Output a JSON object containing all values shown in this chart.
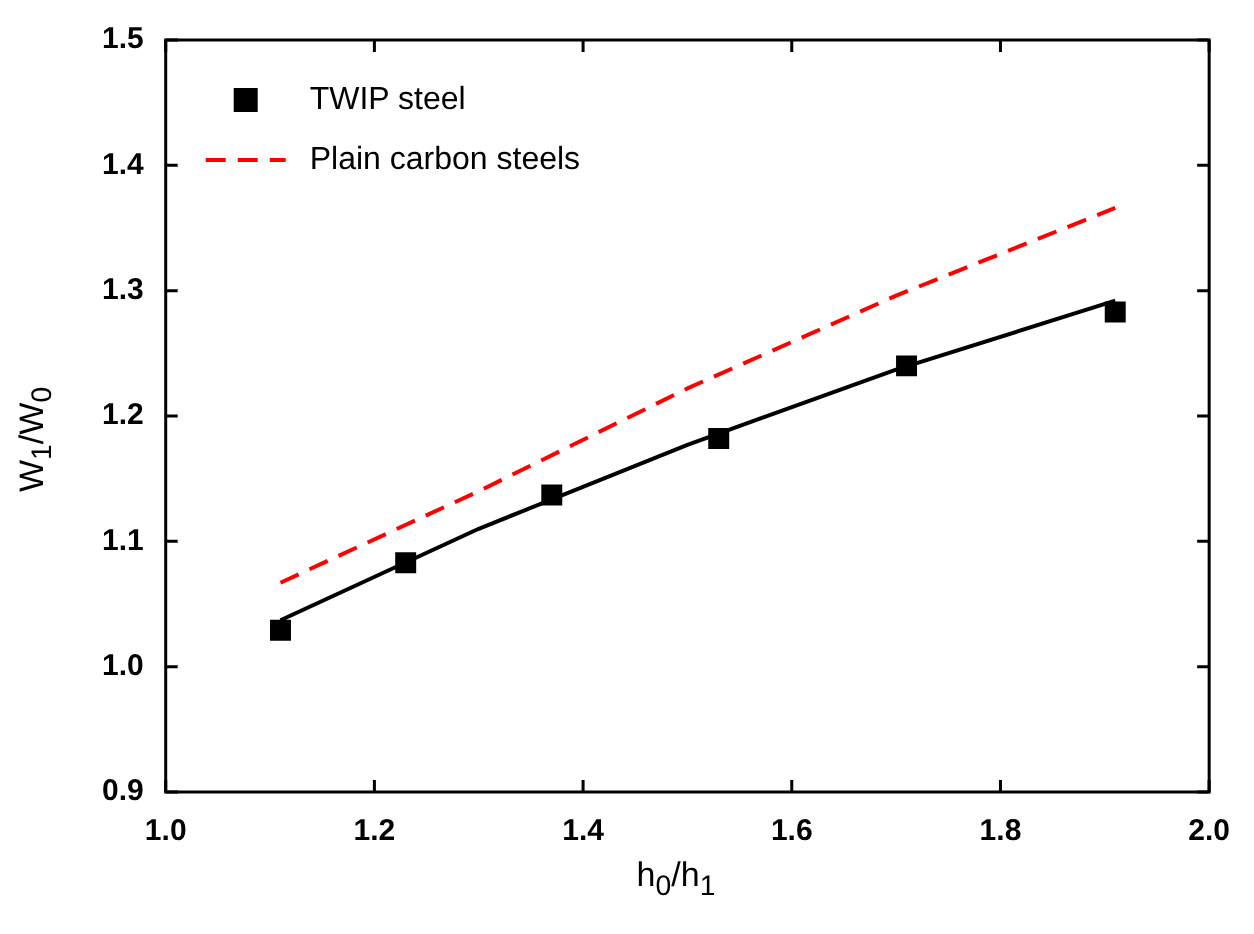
{
  "chart_data": {
    "type": "line",
    "xlabel": "h$_{0}$/h$_{1}$",
    "ylabel": "W$_{1}$/W$_{0}$",
    "xlim": [
      1.0,
      2.0
    ],
    "xticks": [
      {
        "value": 1,
        "label": "1.0"
      },
      1.2,
      1.4,
      1.6,
      1.8,
      {
        "value": 2,
        "label": "2.0"
      }
    ],
    "ylim": [
      0.9,
      1.5
    ],
    "yticks": [
      0.9,
      {
        "value": 1,
        "label": "1.0"
      },
      1.1,
      1.2,
      1.3,
      1.4,
      1.5
    ],
    "grid": false,
    "legend": "top left",
    "series": [
      {
        "name": "TWIP steel",
        "type": "scatter",
        "marker": "square",
        "color": "#000000",
        "x": [
          1.11,
          1.23,
          1.37,
          1.53,
          1.71,
          1.91
        ],
        "values": [
          1.029,
          1.083,
          1.137,
          1.182,
          1.24,
          1.283
        ]
      },
      {
        "name": "Plain carbon steels",
        "type": "line",
        "line_style": "dashed",
        "marker": "none",
        "color": "#ff0000",
        "x": [
          1.11,
          1.3,
          1.5,
          1.7,
          1.91
        ],
        "values": [
          1.067,
          1.14,
          1.222,
          1.296,
          1.366
        ]
      },
      {
        "line_style": "solid",
        "marker": "none",
        "color": "#000000",
        "x": [
          1.11,
          1.3,
          1.5,
          1.7,
          1.91
        ],
        "values": [
          1.037,
          1.11,
          1.177,
          1.237,
          1.292
        ]
      }
    ]
  }
}
